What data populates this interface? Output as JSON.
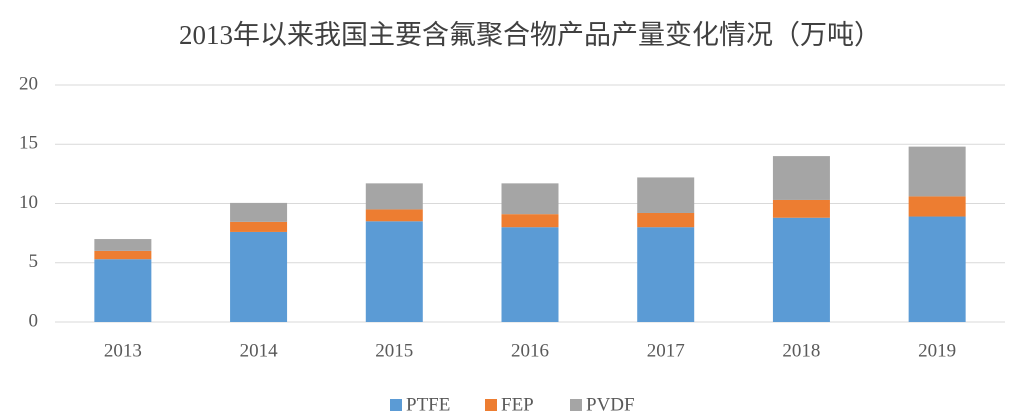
{
  "chart_data": {
    "type": "stacked_bar",
    "title": "2013年以来我国主要含氟聚合物产品产量变化情况（万吨）",
    "categories": [
      "2013",
      "2014",
      "2015",
      "2016",
      "2017",
      "2018",
      "2019"
    ],
    "series": [
      {
        "name": "PTFE",
        "color": "#5b9bd5",
        "values": [
          5.3,
          7.6,
          8.5,
          8.0,
          8.0,
          8.8,
          8.9
        ]
      },
      {
        "name": "FEP",
        "color": "#ed7d31",
        "values": [
          0.7,
          0.85,
          1.0,
          1.1,
          1.2,
          1.5,
          1.7
        ]
      },
      {
        "name": "PVDF",
        "color": "#a5a5a5",
        "values": [
          1.0,
          1.6,
          2.2,
          2.6,
          3.0,
          3.7,
          4.2
        ]
      }
    ],
    "ylim": [
      0,
      20
    ],
    "yticks": [
      0,
      5,
      10,
      15,
      20
    ],
    "grid": true,
    "legend": "bottom"
  }
}
